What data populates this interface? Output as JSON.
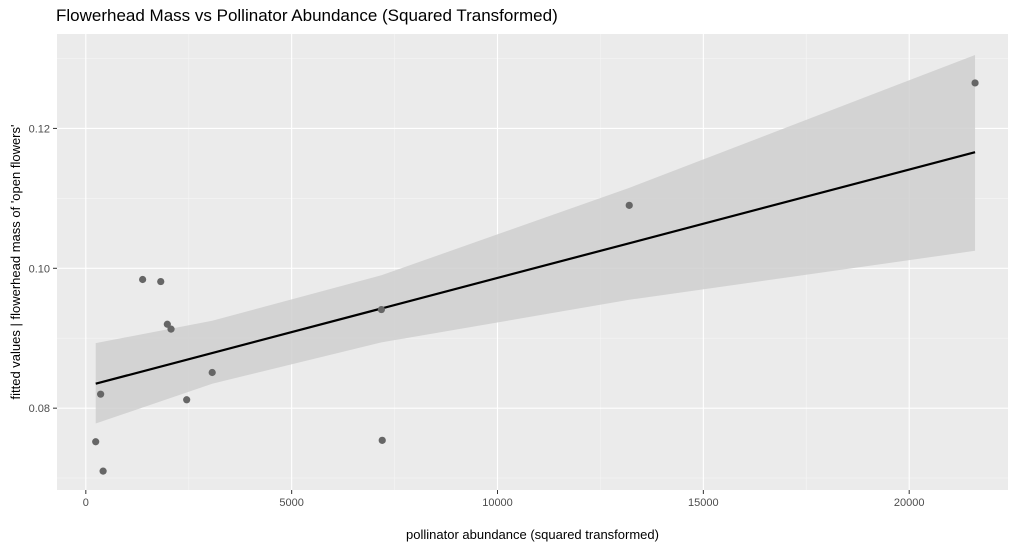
{
  "chart_data": {
    "type": "scatter",
    "title": "Flowerhead Mass vs Pollinator Abundance (Squared Transformed)",
    "xlabel": "pollinator abundance (squared transformed)",
    "ylabel": "fitted values | flowerhead mass of 'open flowers'",
    "xlim": [
      -700,
      22400
    ],
    "ylim": [
      0.0683,
      0.1335
    ],
    "x_ticks": [
      0,
      5000,
      10000,
      15000,
      20000
    ],
    "x_tick_labels": [
      "0",
      "5000",
      "10000",
      "15000",
      "20000"
    ],
    "y_ticks": [
      0.08,
      0.1,
      0.12
    ],
    "y_tick_labels": [
      "0.08",
      "0.10",
      "0.12"
    ],
    "grid": true,
    "points": [
      {
        "x": 240,
        "y": 0.0752
      },
      {
        "x": 360,
        "y": 0.082
      },
      {
        "x": 420,
        "y": 0.071
      },
      {
        "x": 1380,
        "y": 0.0984
      },
      {
        "x": 1820,
        "y": 0.0981
      },
      {
        "x": 1980,
        "y": 0.092
      },
      {
        "x": 2070,
        "y": 0.0913
      },
      {
        "x": 2450,
        "y": 0.0812
      },
      {
        "x": 3070,
        "y": 0.0851
      },
      {
        "x": 7180,
        "y": 0.0941
      },
      {
        "x": 7200,
        "y": 0.0754
      },
      {
        "x": 13200,
        "y": 0.109
      },
      {
        "x": 21600,
        "y": 0.1265
      }
    ],
    "fit_line": {
      "x": [
        240,
        21600
      ],
      "y": [
        0.0835,
        0.1166
      ]
    },
    "confidence_band": {
      "x": [
        240,
        3070,
        7180,
        13200,
        21600
      ],
      "upper": [
        0.0893,
        0.0925,
        0.099,
        0.1115,
        0.1305
      ],
      "lower": [
        0.0778,
        0.0835,
        0.0894,
        0.0955,
        0.1025
      ]
    },
    "colors": {
      "panel_background": "#ebebeb",
      "grid_major": "#ffffff",
      "point": "#666666",
      "fit_line": "#000000",
      "band": "#cfcfcf"
    }
  }
}
